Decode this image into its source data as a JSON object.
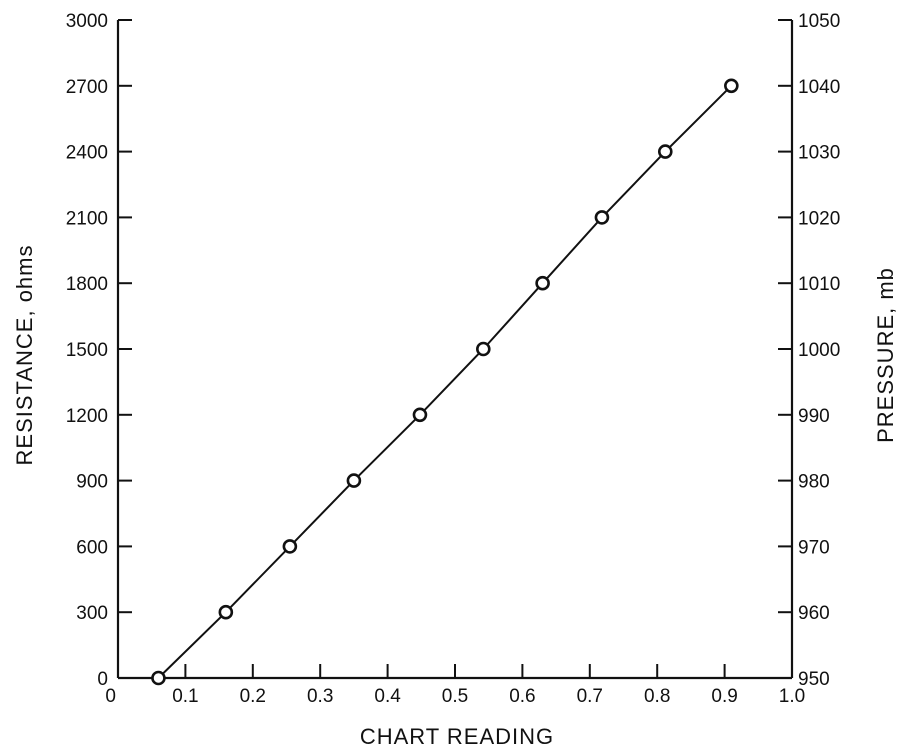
{
  "chart_data": {
    "type": "line",
    "title": "",
    "xlabel": "CHART READING",
    "ylabel": "RESISTANCE, ohms",
    "y2label": "PRESSURE, mb",
    "xlim": [
      0,
      1.0
    ],
    "ylim": [
      0,
      3000
    ],
    "y2lim": [
      950,
      1050
    ],
    "xticks": [
      "0",
      "0.1",
      "0.2",
      "0.3",
      "0.4",
      "0.5",
      "0.6",
      "0.7",
      "0.8",
      "0.9",
      "1.0"
    ],
    "yticks": [
      "0",
      "300",
      "600",
      "900",
      "1200",
      "1500",
      "1800",
      "2100",
      "2400",
      "2700",
      "3000"
    ],
    "y2ticks": [
      "950",
      "960",
      "970",
      "980",
      "990",
      "1000",
      "1010",
      "1020",
      "1030",
      "1040",
      "1050"
    ],
    "grid": false,
    "series": [
      {
        "x": [
          0.06,
          0.16,
          0.255,
          0.35,
          0.448,
          0.542,
          0.63,
          0.718,
          0.812,
          0.91
        ],
        "y": [
          0,
          300,
          600,
          900,
          1200,
          1500,
          1800,
          2100,
          2400,
          2700
        ],
        "marker": "open-circle",
        "line": "solid"
      }
    ],
    "colors": {
      "ink": "#111111",
      "background": "#ffffff"
    }
  }
}
